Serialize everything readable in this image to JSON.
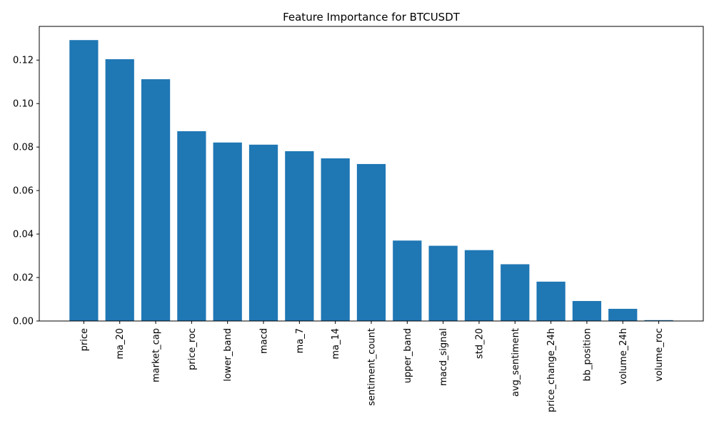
{
  "chart_data": {
    "type": "bar",
    "title": "Feature Importance for BTCUSDT",
    "xlabel": "",
    "ylabel": "",
    "categories": [
      "price",
      "ma_20",
      "market_cap",
      "price_roc",
      "lower_band",
      "macd",
      "ma_7",
      "ma_14",
      "sentiment_count",
      "upper_band",
      "macd_signal",
      "std_20",
      "avg_sentiment",
      "price_change_24h",
      "bb_position",
      "volume_24h",
      "volume_roc"
    ],
    "values": [
      0.1292,
      0.1204,
      0.1112,
      0.0873,
      0.0821,
      0.0811,
      0.0781,
      0.0748,
      0.0722,
      0.037,
      0.0346,
      0.0326,
      0.0261,
      0.0181,
      0.0092,
      0.0056,
      0.0004
    ],
    "ylim": [
      0,
      0.1355
    ],
    "yticks": [
      0.0,
      0.02,
      0.04,
      0.06,
      0.08,
      0.1,
      0.12
    ],
    "ytick_labels": [
      "0.00",
      "0.02",
      "0.04",
      "0.06",
      "0.08",
      "0.10",
      "0.12"
    ],
    "grid": false,
    "bar_color": "#1f77b4"
  }
}
